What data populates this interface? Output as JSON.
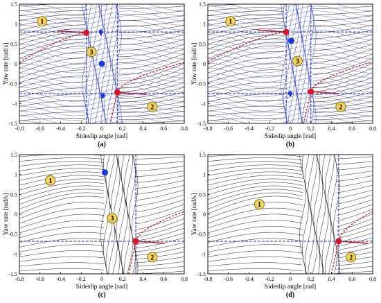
{
  "figure": {
    "colors": {
      "streamline_black": "#000000",
      "streamline_blue": "#1a2bd6",
      "separatrix_red": "#d91a1a",
      "guide_blue": "#1a2bd6",
      "saddle_red": "#d8132a",
      "node_blue": "#1a37e0",
      "badge_fill": "#f3d35a",
      "badge_stroke": "#6a5200"
    }
  },
  "chart_data": [
    {
      "type": "line",
      "panel_tag": "(a)",
      "xlabel": "Sideslip angle [rad]",
      "ylabel": "Yaw rate [rad/s]",
      "xlim": [
        -0.8,
        0.8
      ],
      "ylim": [
        -1.5,
        1.5
      ],
      "xticks": [
        "-0.8",
        "-0.6",
        "-0.4",
        "-0.2",
        "0",
        "0.2",
        "0.4",
        "0.6",
        "0.8"
      ],
      "yticks": [
        "1.5",
        "1",
        "0.5",
        "0",
        "-0.5",
        "-1",
        "-1.5"
      ],
      "grid": false,
      "blue_region": [
        -0.16,
        0.16
      ],
      "equilibria": [
        {
          "x": -0.15,
          "y": 0.78,
          "kind": "saddle"
        },
        {
          "x": 0.15,
          "y": -0.72,
          "kind": "saddle"
        },
        {
          "x": 0.0,
          "y": 0.0,
          "kind": "stable"
        },
        {
          "x": -0.01,
          "y": 0.8,
          "kind": "diamond"
        },
        {
          "x": 0.01,
          "y": -0.8,
          "kind": "diamond"
        }
      ],
      "guides": {
        "v": [
          -0.15,
          0.15
        ],
        "h": [
          0.8,
          -0.75
        ]
      },
      "badges": [
        {
          "label": "1",
          "x": -0.58,
          "y": 1.07
        },
        {
          "label": "2",
          "x": 0.49,
          "y": -1.08
        },
        {
          "label": "3",
          "x": -0.1,
          "y": 0.3
        }
      ]
    },
    {
      "type": "line",
      "panel_tag": "(b)",
      "xlabel": "Sideslip angle [rad]",
      "ylabel": "Yaw rate [rad/s]",
      "xlim": [
        -0.8,
        0.8
      ],
      "ylim": [
        -1.5,
        1.5
      ],
      "xticks": [
        "-0.8",
        "-0.6",
        "-0.4",
        "-0.2",
        "0",
        "0.2",
        "0.4",
        "0.6",
        "0.8"
      ],
      "yticks": [
        "1.5",
        "1",
        "0.5",
        "0",
        "-0.5",
        "-1",
        "-1.5"
      ],
      "grid": false,
      "blue_region": [
        -0.06,
        0.22
      ],
      "equilibria": [
        {
          "x": -0.04,
          "y": 0.8,
          "kind": "saddle"
        },
        {
          "x": 0.2,
          "y": -0.7,
          "kind": "saddle"
        },
        {
          "x": 0.01,
          "y": 0.58,
          "kind": "stable"
        },
        {
          "x": 0.0,
          "y": -0.75,
          "kind": "diamond"
        }
      ],
      "guides": {
        "v": [
          -0.04,
          0.2
        ],
        "h": [
          0.8,
          -0.75
        ]
      },
      "badges": [
        {
          "label": "1",
          "x": -0.58,
          "y": 1.07
        },
        {
          "label": "2",
          "x": 0.49,
          "y": -1.08
        },
        {
          "label": "3",
          "x": 0.07,
          "y": 0.07
        }
      ]
    },
    {
      "type": "line",
      "panel_tag": "(c)",
      "xlabel": "Sideslip angle [rad]",
      "ylabel": "Yaw rate [rad/s]",
      "xlim": [
        -0.8,
        0.8
      ],
      "ylim": [
        -1.5,
        1.5
      ],
      "xticks": [
        "-0.8",
        "-0.6",
        "-0.4",
        "-0.2",
        "0",
        "0.2",
        "0.4",
        "0.6",
        "0.8"
      ],
      "yticks": [
        "1.5",
        "1",
        "0.5",
        "0",
        "-0.5",
        "-1",
        "-1.5"
      ],
      "grid": false,
      "blue_region": null,
      "equilibria": [
        {
          "x": 0.33,
          "y": -0.68,
          "kind": "saddle"
        },
        {
          "x": 0.03,
          "y": 1.05,
          "kind": "stable"
        }
      ],
      "guides": {
        "v": [
          0.33
        ],
        "h": [
          -0.68
        ]
      },
      "badges": [
        {
          "label": "1",
          "x": -0.5,
          "y": 0.85
        },
        {
          "label": "2",
          "x": 0.49,
          "y": -1.08
        },
        {
          "label": "3",
          "x": 0.1,
          "y": -0.1
        }
      ]
    },
    {
      "type": "line",
      "panel_tag": "(d)",
      "xlabel": "Sideslip angle [rad]",
      "ylabel": "Yaw rate [rad/s]",
      "xlim": [
        -0.8,
        0.8
      ],
      "ylim": [
        -1.5,
        1.5
      ],
      "xticks": [
        "-0.8",
        "-0.6",
        "-0.4",
        "-0.2",
        "0",
        "0.2",
        "0.4",
        "0.6",
        "0.8"
      ],
      "yticks": [
        "1.5",
        "1",
        "0.5",
        "0",
        "-0.5",
        "-1",
        "-1.5"
      ],
      "grid": false,
      "blue_region": null,
      "equilibria": [
        {
          "x": 0.47,
          "y": -0.68,
          "kind": "saddle"
        }
      ],
      "guides": {
        "v": [
          0.47
        ],
        "h": [
          -0.68
        ]
      },
      "badges": [
        {
          "label": "1",
          "x": -0.3,
          "y": 0.25
        },
        {
          "label": "2",
          "x": 0.59,
          "y": -1.08
        }
      ]
    }
  ]
}
